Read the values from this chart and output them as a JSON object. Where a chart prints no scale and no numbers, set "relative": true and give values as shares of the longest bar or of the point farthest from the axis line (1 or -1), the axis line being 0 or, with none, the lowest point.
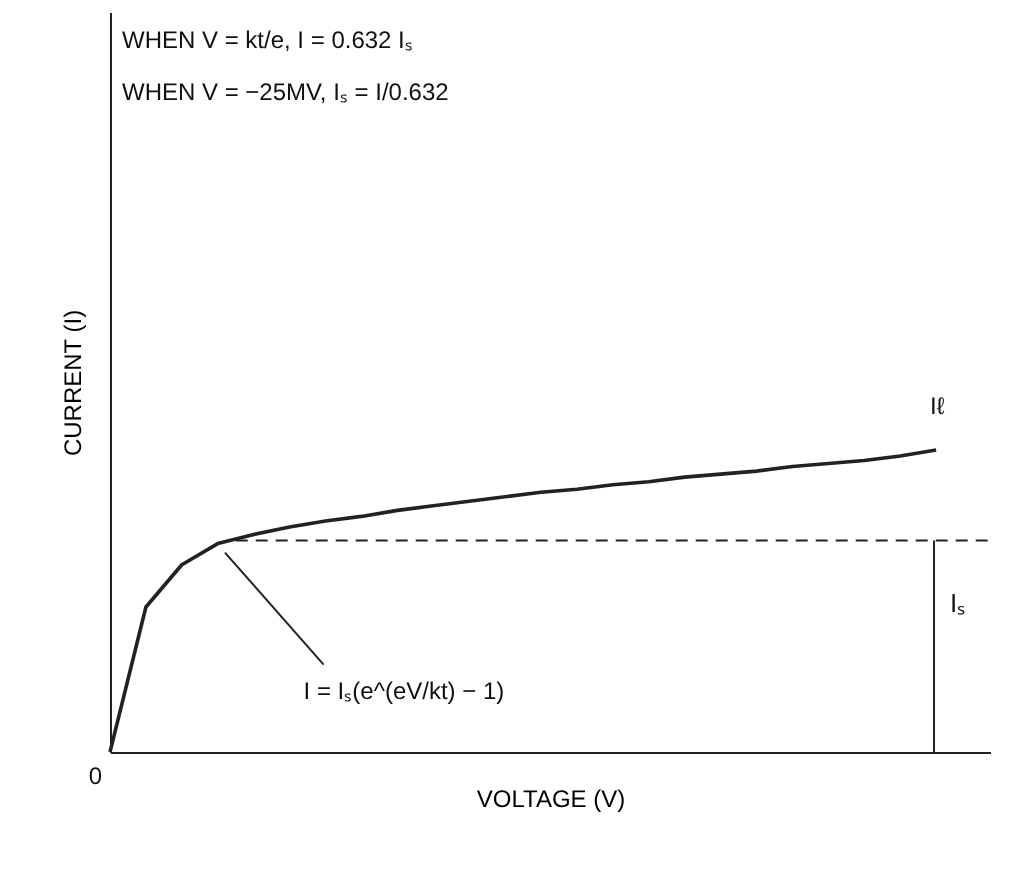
{
  "chart_data": {
    "type": "line",
    "relative": true,
    "xlabel": "VOLTAGE (V)",
    "ylabel": "CURRENT (I)",
    "categories": [
      null,
      null,
      null,
      null,
      null,
      null,
      null,
      null,
      null,
      null,
      null,
      null,
      null,
      null,
      null,
      null,
      null,
      null,
      null,
      null,
      null,
      null,
      null,
      null
    ],
    "series": [
      {
        "color": "#222222",
        "values": [
          0,
          0.48,
          0.62,
          0.69,
          0.72,
          0.745,
          0.765,
          0.78,
          0.8,
          0.815,
          0.83,
          0.845,
          0.86,
          0.87,
          0.885,
          0.895,
          0.91,
          0.92,
          0.93,
          0.945,
          0.955,
          0.965,
          0.98,
          1
        ]
      }
    ],
    "ref_lines": [
      {
        "axis": "y",
        "value": 0.7,
        "line_style": "dashed",
        "color": "#222222"
      }
    ],
    "line_style": "solid",
    "marker": "none",
    "grid": false,
    "tick_labels": false,
    "annotations": [
      "WHEN V = kt/e, I = 0.632 Iₛ",
      "WHEN V = −25MV, Iₛ = I/0.632",
      "I = Iₛ(e^(eV/kt) − 1)",
      "Iₛ",
      "Iℓ",
      "0"
    ]
  }
}
